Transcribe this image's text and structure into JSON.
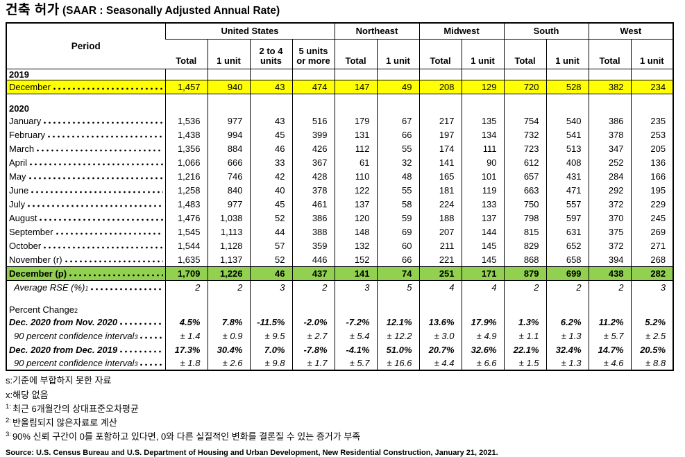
{
  "title": {
    "korean": "건축 허가",
    "subtitle": "(SAAR : Seasonally Adjusted Annual Rate)"
  },
  "table": {
    "period_header": "Period",
    "groups": [
      {
        "label": "United States",
        "columns": [
          "Total",
          "1 unit",
          "2 to 4 units",
          "5 units or more"
        ]
      },
      {
        "label": "Northeast",
        "columns": [
          "Total",
          "1 unit"
        ]
      },
      {
        "label": "Midwest",
        "columns": [
          "Total",
          "1 unit"
        ]
      },
      {
        "label": "South",
        "columns": [
          "Total",
          "1 unit"
        ]
      },
      {
        "label": "West",
        "columns": [
          "Total",
          "1 unit"
        ]
      }
    ],
    "rows": [
      {
        "type": "year",
        "label": "2019"
      },
      {
        "type": "data",
        "label": "December",
        "style": "yellow",
        "values": [
          "1,457",
          "940",
          "43",
          "474",
          "147",
          "49",
          "208",
          "129",
          "720",
          "528",
          "382",
          "234"
        ]
      },
      {
        "type": "spacer"
      },
      {
        "type": "year",
        "label": "2020"
      },
      {
        "type": "data",
        "label": "January",
        "values": [
          "1,536",
          "977",
          "43",
          "516",
          "179",
          "67",
          "217",
          "135",
          "754",
          "540",
          "386",
          "235"
        ]
      },
      {
        "type": "data",
        "label": "February",
        "values": [
          "1,438",
          "994",
          "45",
          "399",
          "131",
          "66",
          "197",
          "134",
          "732",
          "541",
          "378",
          "253"
        ]
      },
      {
        "type": "data",
        "label": "March",
        "values": [
          "1,356",
          "884",
          "46",
          "426",
          "112",
          "55",
          "174",
          "111",
          "723",
          "513",
          "347",
          "205"
        ]
      },
      {
        "type": "data",
        "label": "April",
        "values": [
          "1,066",
          "666",
          "33",
          "367",
          "61",
          "32",
          "141",
          "90",
          "612",
          "408",
          "252",
          "136"
        ]
      },
      {
        "type": "data",
        "label": "May",
        "values": [
          "1,216",
          "746",
          "42",
          "428",
          "110",
          "48",
          "165",
          "101",
          "657",
          "431",
          "284",
          "166"
        ]
      },
      {
        "type": "data",
        "label": "June",
        "values": [
          "1,258",
          "840",
          "40",
          "378",
          "122",
          "55",
          "181",
          "119",
          "663",
          "471",
          "292",
          "195"
        ]
      },
      {
        "type": "data",
        "label": "July",
        "values": [
          "1,483",
          "977",
          "45",
          "461",
          "137",
          "58",
          "224",
          "133",
          "750",
          "557",
          "372",
          "229"
        ]
      },
      {
        "type": "data",
        "label": "August",
        "values": [
          "1,476",
          "1,038",
          "52",
          "386",
          "120",
          "59",
          "188",
          "137",
          "798",
          "597",
          "370",
          "245"
        ]
      },
      {
        "type": "data",
        "label": "September",
        "values": [
          "1,545",
          "1,113",
          "44",
          "388",
          "148",
          "69",
          "207",
          "144",
          "815",
          "631",
          "375",
          "269"
        ]
      },
      {
        "type": "data",
        "label": "October",
        "values": [
          "1,544",
          "1,128",
          "57",
          "359",
          "132",
          "60",
          "211",
          "145",
          "829",
          "652",
          "372",
          "271"
        ]
      },
      {
        "type": "data",
        "label": "November (r)",
        "values": [
          "1,635",
          "1,137",
          "52",
          "446",
          "152",
          "66",
          "221",
          "145",
          "868",
          "658",
          "394",
          "268"
        ]
      },
      {
        "type": "data",
        "label": "December (p)",
        "style": "green",
        "values": [
          "1,709",
          "1,226",
          "46",
          "437",
          "141",
          "74",
          "251",
          "171",
          "879",
          "699",
          "438",
          "282"
        ]
      },
      {
        "type": "data",
        "label": "Average RSE (%)",
        "sup": "1",
        "style": "italic",
        "indent": true,
        "values": [
          "2",
          "2",
          "3",
          "2",
          "3",
          "5",
          "4",
          "4",
          "2",
          "2",
          "2",
          "3"
        ]
      },
      {
        "type": "spacer"
      },
      {
        "type": "section",
        "label": "Percent Change",
        "sup": "2"
      },
      {
        "type": "data",
        "label": "Dec. 2020 from Nov. 2020",
        "style": "bold-italic",
        "values": [
          "4.5%",
          "7.8%",
          "-11.5%",
          "-2.0%",
          "-7.2%",
          "12.1%",
          "13.6%",
          "17.9%",
          "1.3%",
          "6.2%",
          "11.2%",
          "5.2%"
        ]
      },
      {
        "type": "data",
        "label": "90 percent confidence interval",
        "sup": "3",
        "style": "italic",
        "indent": true,
        "values": [
          "± 1.4",
          "± 0.9",
          "± 9.5",
          "± 2.7",
          "± 5.4",
          "± 12.2",
          "± 3.0",
          "± 4.9",
          "± 1.1",
          "± 1.3",
          "± 5.7",
          "± 2.5"
        ]
      },
      {
        "type": "data",
        "label": "Dec. 2020 from Dec. 2019",
        "style": "bold-italic",
        "values": [
          "17.3%",
          "30.4%",
          "7.0%",
          "-7.8%",
          "-4.1%",
          "51.0%",
          "20.7%",
          "32.6%",
          "22.1%",
          "32.4%",
          "14.7%",
          "20.5%"
        ]
      },
      {
        "type": "data",
        "label": "90 percent confidence interval",
        "sup": "3",
        "style": "italic",
        "indent": true,
        "values": [
          "± 1.8",
          "± 2.6",
          "± 9.8",
          "± 1.7",
          "± 5.7",
          "± 16.6",
          "± 4.4",
          "± 6.6",
          "± 1.5",
          "± 1.3",
          "± 4.6",
          "± 8.8"
        ]
      }
    ]
  },
  "footnotes": [
    {
      "text": "s:기준에 부합하지 못한 자료"
    },
    {
      "text": "x:해당 없음"
    },
    {
      "sup": "1:",
      "text": "최근 6개월간의 상대표준오차평균"
    },
    {
      "sup": "2:",
      "text": "반올림되지 않은자료로 계산"
    },
    {
      "sup": "3:",
      "text": "90% 신뢰 구간이 0를 포함하고 있다면, 0와 다른 실질적인 변화를 결론질 수 있는 증거가 부족"
    }
  ],
  "source": "Source: U.S. Census Bureau and U.S. Department of Housing and Urban Development, New Residential Construction, January 21, 2021.",
  "colors": {
    "highlight_yellow": "#FFFF00",
    "highlight_green": "#92D050",
    "border": "#000000"
  }
}
